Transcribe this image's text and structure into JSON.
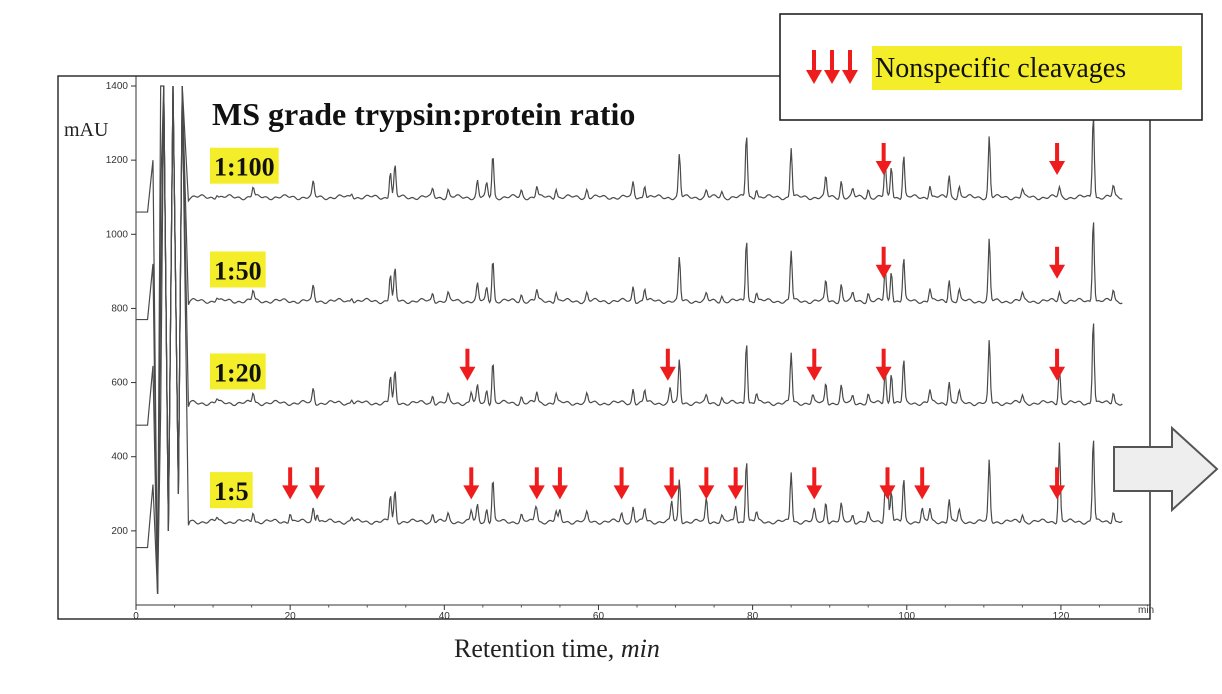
{
  "chart_data": {
    "type": "line",
    "title": "MS grade trypsin:protein ratio",
    "ylabel": "mAU",
    "xlabel": "Retention time,",
    "xlabel_unit": "min",
    "x_axis_end_label": "min",
    "xlim": [
      0,
      130
    ],
    "ylim": [
      0,
      1400
    ],
    "x_ticks": [
      0,
      20,
      40,
      60,
      80,
      100,
      120
    ],
    "y_ticks": [
      200,
      400,
      600,
      800,
      1000,
      1200,
      1400
    ],
    "legend": {
      "label": "Nonspecific cleavages",
      "placement": "top-right"
    },
    "peaks": [
      {
        "t": 10.5,
        "h": 10
      },
      {
        "t": 15.2,
        "h": 28
      },
      {
        "t": 23.0,
        "h": 40
      },
      {
        "t": 28.0,
        "h": 12
      },
      {
        "t": 33.0,
        "h": 72
      },
      {
        "t": 33.6,
        "h": 85
      },
      {
        "t": 38.5,
        "h": 22
      },
      {
        "t": 40.5,
        "h": 20
      },
      {
        "t": 44.3,
        "h": 45
      },
      {
        "t": 45.5,
        "h": 35
      },
      {
        "t": 46.3,
        "h": 115
      },
      {
        "t": 50.0,
        "h": 18
      },
      {
        "t": 52.0,
        "h": 30
      },
      {
        "t": 54.5,
        "h": 25
      },
      {
        "t": 58.5,
        "h": 22
      },
      {
        "t": 64.5,
        "h": 40
      },
      {
        "t": 66.0,
        "h": 35
      },
      {
        "t": 70.5,
        "h": 115
      },
      {
        "t": 74.0,
        "h": 18
      },
      {
        "t": 76.0,
        "h": 15
      },
      {
        "t": 79.2,
        "h": 170
      },
      {
        "t": 80.5,
        "h": 25
      },
      {
        "t": 85.0,
        "h": 135
      },
      {
        "t": 89.5,
        "h": 55
      },
      {
        "t": 91.5,
        "h": 45
      },
      {
        "t": 93.0,
        "h": 20
      },
      {
        "t": 95.0,
        "h": 22
      },
      {
        "t": 97.2,
        "h": 90
      },
      {
        "t": 98.0,
        "h": 85
      },
      {
        "t": 99.6,
        "h": 115
      },
      {
        "t": 103.0,
        "h": 35
      },
      {
        "t": 105.5,
        "h": 60
      },
      {
        "t": 106.8,
        "h": 30
      },
      {
        "t": 110.7,
        "h": 165
      },
      {
        "t": 115.0,
        "h": 20
      },
      {
        "t": 119.8,
        "h": 25
      },
      {
        "t": 124.2,
        "h": 230
      },
      {
        "t": 126.8,
        "h": 30
      }
    ],
    "series": [
      {
        "name": "1:100",
        "baseline": 1100,
        "cleavage_arrows": [
          97,
          119.5
        ],
        "extra_peaks": []
      },
      {
        "name": "1:50",
        "baseline": 820,
        "cleavage_arrows": [
          97,
          119.5
        ],
        "extra_peaks": []
      },
      {
        "name": "1:20",
        "baseline": 545,
        "cleavage_arrows": [
          43,
          69,
          88,
          97,
          119.5
        ],
        "extra_peaks": [
          {
            "t": 43.5,
            "h": 30
          },
          {
            "t": 69.3,
            "h": 40
          },
          {
            "t": 87.8,
            "h": 20
          },
          {
            "t": 119.8,
            "h": 75
          }
        ]
      },
      {
        "name": "1:5",
        "baseline": 225,
        "cleavage_arrows": [
          20,
          23.5,
          43.5,
          52,
          55,
          63,
          69.5,
          74,
          77.8,
          88,
          97.5,
          102,
          119.5
        ],
        "extra_peaks": [
          {
            "t": 20,
            "h": 25
          },
          {
            "t": 23.5,
            "h": 25
          },
          {
            "t": 43.5,
            "h": 30
          },
          {
            "t": 51.8,
            "h": 30
          },
          {
            "t": 55,
            "h": 28
          },
          {
            "t": 63,
            "h": 22
          },
          {
            "t": 69.5,
            "h": 55
          },
          {
            "t": 74,
            "h": 45
          },
          {
            "t": 77.8,
            "h": 45
          },
          {
            "t": 88,
            "h": 30
          },
          {
            "t": 97.5,
            "h": 110
          },
          {
            "t": 102,
            "h": 35
          },
          {
            "t": 119.8,
            "h": 190
          }
        ]
      }
    ]
  },
  "colors": {
    "trace": "#4a4a4a",
    "arrow": "#ee1c1c",
    "highlight": "#f4ee2a",
    "big_arrow_fill": "#eeeeee",
    "big_arrow_stroke": "#555555"
  },
  "decorations": {
    "right_arrow_icon": "right-arrow-icon"
  }
}
